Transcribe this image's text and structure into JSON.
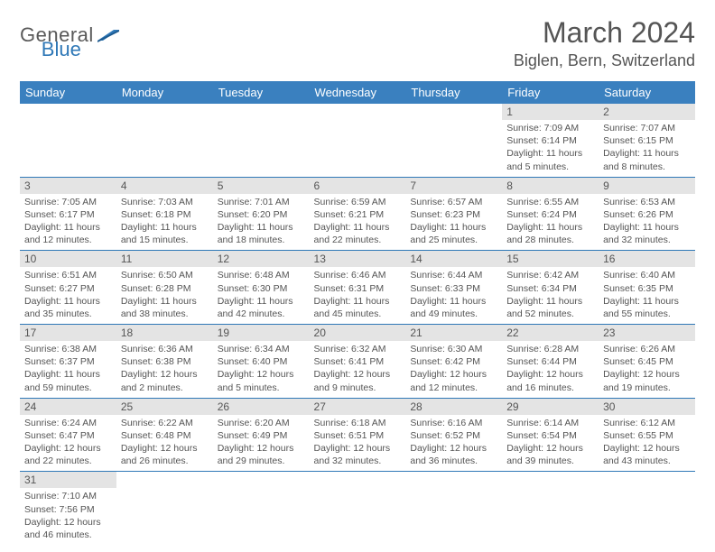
{
  "logo": {
    "general": "General",
    "blue": "Blue"
  },
  "header": {
    "month_title": "March 2024",
    "location": "Biglen, Bern, Switzerland"
  },
  "colors": {
    "header_bg": "#3a80bf",
    "header_text": "#ffffff",
    "daynum_bg": "#e4e4e4",
    "border": "#2f78b7",
    "text": "#555555",
    "logo_gray": "#595959",
    "logo_blue": "#2f78b7"
  },
  "typography": {
    "month_title_size": 32,
    "location_size": 18,
    "weekday_size": 13,
    "daynum_size": 12,
    "body_size": 10.5
  },
  "weekdays": [
    "Sunday",
    "Monday",
    "Tuesday",
    "Wednesday",
    "Thursday",
    "Friday",
    "Saturday"
  ],
  "weeks": [
    [
      null,
      null,
      null,
      null,
      null,
      {
        "n": "1",
        "sr": "Sunrise: 7:09 AM",
        "ss": "Sunset: 6:14 PM",
        "dl1": "Daylight: 11 hours",
        "dl2": "and 5 minutes."
      },
      {
        "n": "2",
        "sr": "Sunrise: 7:07 AM",
        "ss": "Sunset: 6:15 PM",
        "dl1": "Daylight: 11 hours",
        "dl2": "and 8 minutes."
      }
    ],
    [
      {
        "n": "3",
        "sr": "Sunrise: 7:05 AM",
        "ss": "Sunset: 6:17 PM",
        "dl1": "Daylight: 11 hours",
        "dl2": "and 12 minutes."
      },
      {
        "n": "4",
        "sr": "Sunrise: 7:03 AM",
        "ss": "Sunset: 6:18 PM",
        "dl1": "Daylight: 11 hours",
        "dl2": "and 15 minutes."
      },
      {
        "n": "5",
        "sr": "Sunrise: 7:01 AM",
        "ss": "Sunset: 6:20 PM",
        "dl1": "Daylight: 11 hours",
        "dl2": "and 18 minutes."
      },
      {
        "n": "6",
        "sr": "Sunrise: 6:59 AM",
        "ss": "Sunset: 6:21 PM",
        "dl1": "Daylight: 11 hours",
        "dl2": "and 22 minutes."
      },
      {
        "n": "7",
        "sr": "Sunrise: 6:57 AM",
        "ss": "Sunset: 6:23 PM",
        "dl1": "Daylight: 11 hours",
        "dl2": "and 25 minutes."
      },
      {
        "n": "8",
        "sr": "Sunrise: 6:55 AM",
        "ss": "Sunset: 6:24 PM",
        "dl1": "Daylight: 11 hours",
        "dl2": "and 28 minutes."
      },
      {
        "n": "9",
        "sr": "Sunrise: 6:53 AM",
        "ss": "Sunset: 6:26 PM",
        "dl1": "Daylight: 11 hours",
        "dl2": "and 32 minutes."
      }
    ],
    [
      {
        "n": "10",
        "sr": "Sunrise: 6:51 AM",
        "ss": "Sunset: 6:27 PM",
        "dl1": "Daylight: 11 hours",
        "dl2": "and 35 minutes."
      },
      {
        "n": "11",
        "sr": "Sunrise: 6:50 AM",
        "ss": "Sunset: 6:28 PM",
        "dl1": "Daylight: 11 hours",
        "dl2": "and 38 minutes."
      },
      {
        "n": "12",
        "sr": "Sunrise: 6:48 AM",
        "ss": "Sunset: 6:30 PM",
        "dl1": "Daylight: 11 hours",
        "dl2": "and 42 minutes."
      },
      {
        "n": "13",
        "sr": "Sunrise: 6:46 AM",
        "ss": "Sunset: 6:31 PM",
        "dl1": "Daylight: 11 hours",
        "dl2": "and 45 minutes."
      },
      {
        "n": "14",
        "sr": "Sunrise: 6:44 AM",
        "ss": "Sunset: 6:33 PM",
        "dl1": "Daylight: 11 hours",
        "dl2": "and 49 minutes."
      },
      {
        "n": "15",
        "sr": "Sunrise: 6:42 AM",
        "ss": "Sunset: 6:34 PM",
        "dl1": "Daylight: 11 hours",
        "dl2": "and 52 minutes."
      },
      {
        "n": "16",
        "sr": "Sunrise: 6:40 AM",
        "ss": "Sunset: 6:35 PM",
        "dl1": "Daylight: 11 hours",
        "dl2": "and 55 minutes."
      }
    ],
    [
      {
        "n": "17",
        "sr": "Sunrise: 6:38 AM",
        "ss": "Sunset: 6:37 PM",
        "dl1": "Daylight: 11 hours",
        "dl2": "and 59 minutes."
      },
      {
        "n": "18",
        "sr": "Sunrise: 6:36 AM",
        "ss": "Sunset: 6:38 PM",
        "dl1": "Daylight: 12 hours",
        "dl2": "and 2 minutes."
      },
      {
        "n": "19",
        "sr": "Sunrise: 6:34 AM",
        "ss": "Sunset: 6:40 PM",
        "dl1": "Daylight: 12 hours",
        "dl2": "and 5 minutes."
      },
      {
        "n": "20",
        "sr": "Sunrise: 6:32 AM",
        "ss": "Sunset: 6:41 PM",
        "dl1": "Daylight: 12 hours",
        "dl2": "and 9 minutes."
      },
      {
        "n": "21",
        "sr": "Sunrise: 6:30 AM",
        "ss": "Sunset: 6:42 PM",
        "dl1": "Daylight: 12 hours",
        "dl2": "and 12 minutes."
      },
      {
        "n": "22",
        "sr": "Sunrise: 6:28 AM",
        "ss": "Sunset: 6:44 PM",
        "dl1": "Daylight: 12 hours",
        "dl2": "and 16 minutes."
      },
      {
        "n": "23",
        "sr": "Sunrise: 6:26 AM",
        "ss": "Sunset: 6:45 PM",
        "dl1": "Daylight: 12 hours",
        "dl2": "and 19 minutes."
      }
    ],
    [
      {
        "n": "24",
        "sr": "Sunrise: 6:24 AM",
        "ss": "Sunset: 6:47 PM",
        "dl1": "Daylight: 12 hours",
        "dl2": "and 22 minutes."
      },
      {
        "n": "25",
        "sr": "Sunrise: 6:22 AM",
        "ss": "Sunset: 6:48 PM",
        "dl1": "Daylight: 12 hours",
        "dl2": "and 26 minutes."
      },
      {
        "n": "26",
        "sr": "Sunrise: 6:20 AM",
        "ss": "Sunset: 6:49 PM",
        "dl1": "Daylight: 12 hours",
        "dl2": "and 29 minutes."
      },
      {
        "n": "27",
        "sr": "Sunrise: 6:18 AM",
        "ss": "Sunset: 6:51 PM",
        "dl1": "Daylight: 12 hours",
        "dl2": "and 32 minutes."
      },
      {
        "n": "28",
        "sr": "Sunrise: 6:16 AM",
        "ss": "Sunset: 6:52 PM",
        "dl1": "Daylight: 12 hours",
        "dl2": "and 36 minutes."
      },
      {
        "n": "29",
        "sr": "Sunrise: 6:14 AM",
        "ss": "Sunset: 6:54 PM",
        "dl1": "Daylight: 12 hours",
        "dl2": "and 39 minutes."
      },
      {
        "n": "30",
        "sr": "Sunrise: 6:12 AM",
        "ss": "Sunset: 6:55 PM",
        "dl1": "Daylight: 12 hours",
        "dl2": "and 43 minutes."
      }
    ],
    [
      {
        "n": "31",
        "sr": "Sunrise: 7:10 AM",
        "ss": "Sunset: 7:56 PM",
        "dl1": "Daylight: 12 hours",
        "dl2": "and 46 minutes."
      },
      null,
      null,
      null,
      null,
      null,
      null
    ]
  ]
}
